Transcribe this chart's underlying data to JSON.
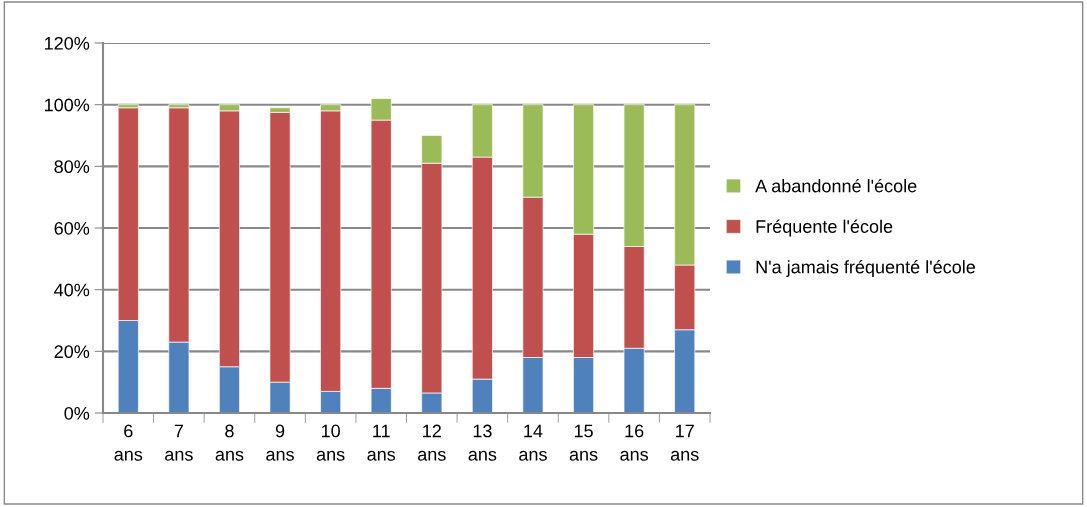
{
  "chart_data": {
    "type": "bar",
    "stacked": true,
    "categories": [
      "6\nans",
      "7\nans",
      "8\nans",
      "9\nans",
      "10\nans",
      "11\nans",
      "12\nans",
      "13\nans",
      "14\nans",
      "15\nans",
      "16\nans",
      "17\nans"
    ],
    "series": [
      {
        "name": "N'a jamais fréquenté l'école",
        "color": "#4f81bd",
        "values": [
          30,
          23,
          15,
          10,
          7,
          8,
          6.5,
          11,
          18,
          18,
          21,
          27
        ]
      },
      {
        "name": "Fréquente l'école",
        "color": "#c0504d",
        "values": [
          69,
          76,
          83,
          87.5,
          91,
          87,
          74.5,
          72,
          52,
          40,
          33,
          21
        ]
      },
      {
        "name": "A abandonné l'école",
        "color": "#9bbb59",
        "values": [
          1,
          1,
          2,
          1.5,
          2,
          7,
          9,
          17,
          30,
          42,
          46,
          52
        ]
      }
    ],
    "ylim": [
      0,
      120
    ],
    "yticks": [
      {
        "value": 0,
        "label": "0%"
      },
      {
        "value": 20,
        "label": "20%"
      },
      {
        "value": 40,
        "label": "40%"
      },
      {
        "value": 60,
        "label": "60%"
      },
      {
        "value": 80,
        "label": "80%"
      },
      {
        "value": 100,
        "label": "100%"
      },
      {
        "value": 120,
        "label": "120%"
      }
    ],
    "grid": "y",
    "legend": "right"
  }
}
